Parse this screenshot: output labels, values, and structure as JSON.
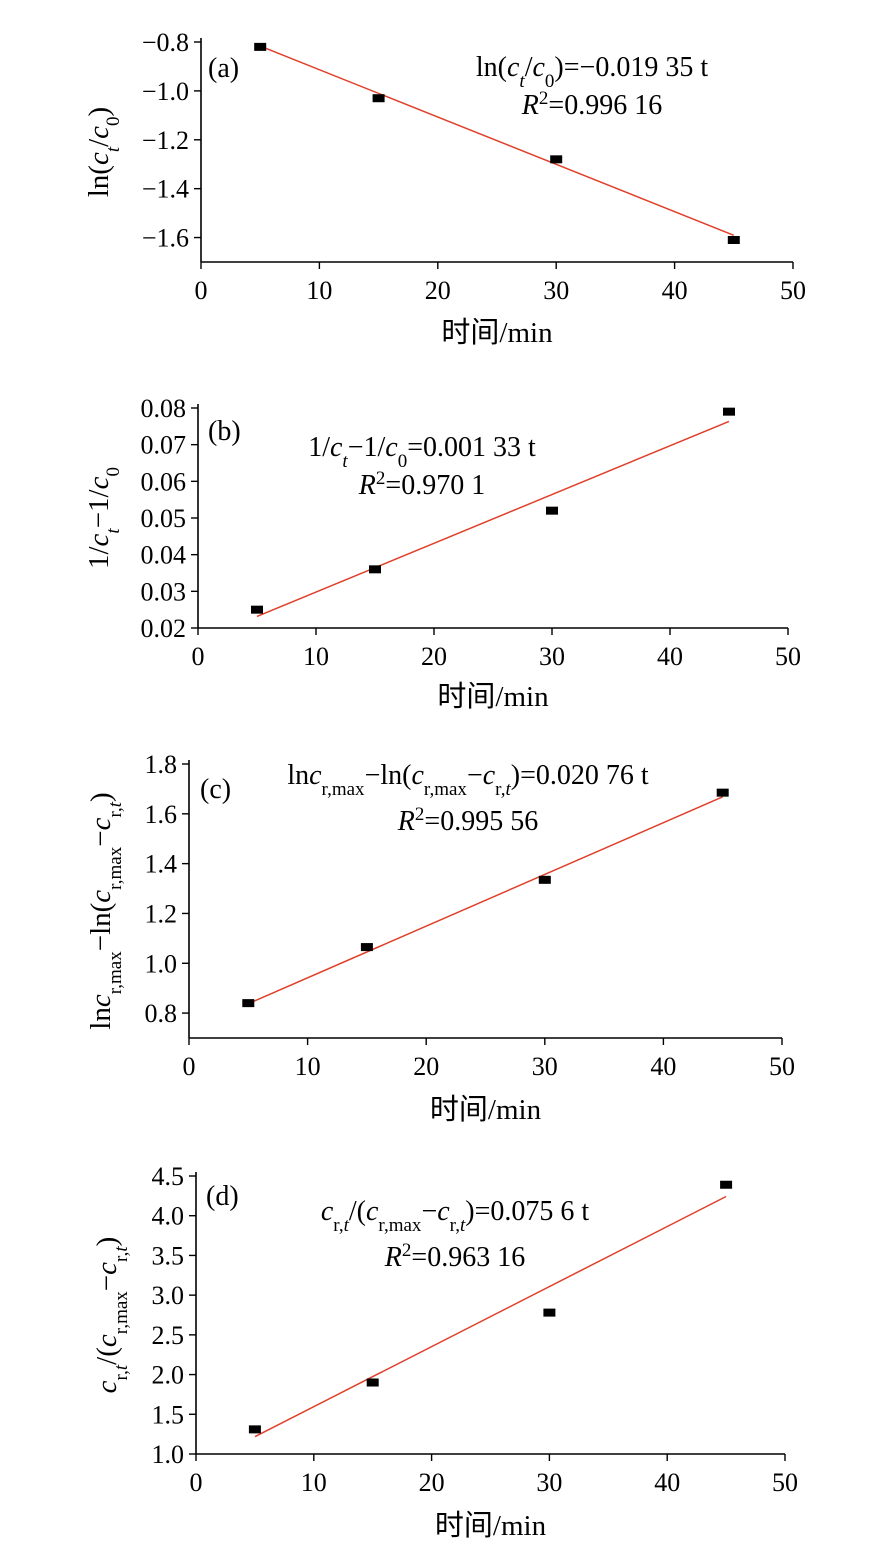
{
  "chart_data": [
    {
      "type": "scatter",
      "panel_label": "(a)",
      "x": [
        5,
        15,
        30,
        45
      ],
      "y": [
        -0.82,
        -1.03,
        -1.28,
        -1.61
      ],
      "fit": {
        "slope": -0.01935,
        "color": "#e0402a"
      },
      "equation": {
        "lhs": "ln(c_t/c_0)",
        "rhs": "=−0.019 35 t"
      },
      "r2_label": "R²",
      "r2_value": "=0.996 16",
      "xlabel": "时间/min",
      "ylabel": "ln(c_t/c_0)",
      "xlim": [
        0,
        50
      ],
      "ylim": [
        -1.7,
        -0.8
      ],
      "xticks": [
        "0",
        "10",
        "20",
        "30",
        "40",
        "50"
      ],
      "yticks": [
        "−0.8",
        "−1.0",
        "−1.2",
        "−1.4",
        "−1.6"
      ],
      "grid": false,
      "marker": "square",
      "marker_color": "#000000"
    },
    {
      "type": "scatter",
      "panel_label": "(b)",
      "x": [
        5,
        15,
        30,
        45
      ],
      "y": [
        0.025,
        0.036,
        0.052,
        0.079
      ],
      "fit": {
        "slope": 0.00133,
        "color": "#e0402a"
      },
      "equation": {
        "lhs": "1/c_t−1/c_0",
        "rhs": "=0.001 33 t"
      },
      "r2_label": "R²",
      "r2_value": "=0.970 1",
      "xlabel": "时间/min",
      "ylabel": "1/c_t−1/c_0",
      "xlim": [
        0,
        50
      ],
      "ylim": [
        0.02,
        0.08
      ],
      "xticks": [
        "0",
        "10",
        "20",
        "30",
        "40",
        "50"
      ],
      "yticks": [
        "0.08",
        "0.07",
        "0.06",
        "0.05",
        "0.04",
        "0.03",
        "0.02"
      ],
      "grid": false,
      "marker": "square",
      "marker_color": "#000000"
    },
    {
      "type": "scatter",
      "panel_label": "(c)",
      "x": [
        5,
        15,
        30,
        45
      ],
      "y": [
        0.84,
        1.065,
        1.335,
        1.685
      ],
      "fit": {
        "slope": 0.02076,
        "color": "#e0402a"
      },
      "equation": {
        "lhs": "lnc_r,max−ln(c_r,max−c_r,t)",
        "rhs": "=0.020 76 t"
      },
      "r2_label": "R²",
      "r2_value": "=0.995 56",
      "xlabel": "时间/min",
      "ylabel": "lnc_r,max−ln(c_r,max−c_r,t)",
      "xlim": [
        0,
        50
      ],
      "ylim": [
        0.7,
        1.8
      ],
      "xticks": [
        "0",
        "10",
        "20",
        "30",
        "40",
        "50"
      ],
      "yticks": [
        "1.8",
        "1.6",
        "1.4",
        "1.2",
        "1.0",
        "0.8"
      ],
      "grid": false,
      "marker": "square",
      "marker_color": "#000000"
    },
    {
      "type": "scatter",
      "panel_label": "(d)",
      "x": [
        5,
        15,
        30,
        45
      ],
      "y": [
        1.31,
        1.9,
        2.78,
        4.39
      ],
      "fit": {
        "slope": 0.0756,
        "color": "#e0402a"
      },
      "equation": {
        "lhs": "c_r,t/(c_r,max−c_r,t)",
        "rhs": "=0.075 6 t"
      },
      "r2_label": "R²",
      "r2_value": "=0.963 16",
      "xlabel": "时间/min",
      "ylabel": "c_r,t/(c_r,max−c_r,t)",
      "xlim": [
        0,
        50
      ],
      "ylim": [
        1.0,
        4.5
      ],
      "xticks": [
        "0",
        "10",
        "20",
        "30",
        "40",
        "50"
      ],
      "yticks": [
        "4.5",
        "4.0",
        "3.5",
        "3.0",
        "2.5",
        "2.0",
        "1.5",
        "1.0"
      ],
      "grid": false,
      "marker": "square",
      "marker_color": "#000000"
    }
  ]
}
